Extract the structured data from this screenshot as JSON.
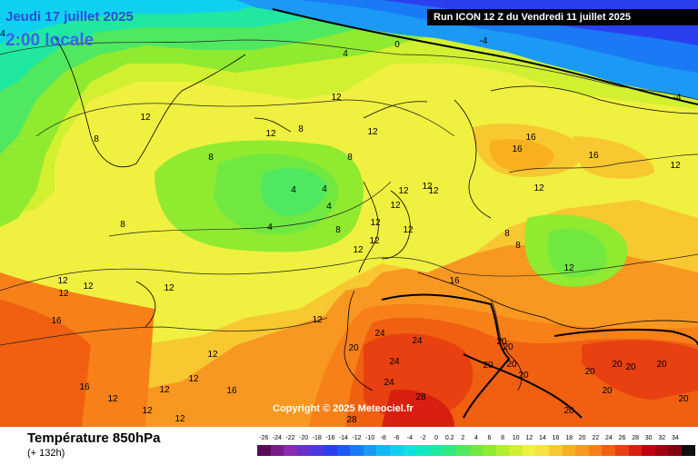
{
  "header": {
    "date": "Jeudi 17 juillet 2025",
    "time": "2:00 locale",
    "run": "Run ICON 12 Z du Vendredi 11 juillet 2025"
  },
  "copyright": "Copyright © 2025 Meteociel.fr",
  "legend": {
    "title": "Température 850hPa",
    "subtitle": "(+ 132h)",
    "ticks": [
      "-26",
      "-24",
      "-22",
      "-20",
      "-18",
      "-16",
      "-14",
      "-12",
      "-10",
      "-8",
      "-6",
      "-4",
      "-2",
      "0",
      "0.2",
      "2",
      "4",
      "6",
      "8",
      "10",
      "12",
      "14",
      "16",
      "18",
      "20",
      "22",
      "24",
      "26",
      "28",
      "30",
      "32",
      "34"
    ],
    "colors": [
      "#5a0a5a",
      "#7a1a8a",
      "#8a2ab0",
      "#6a30c8",
      "#4a3ae0",
      "#2a40f0",
      "#1a5af5",
      "#1a7af5",
      "#1a9af5",
      "#10b8f5",
      "#10d0f0",
      "#10e0e0",
      "#10e8c0",
      "#20e8a0",
      "#30e880",
      "#50e860",
      "#70e840",
      "#90ea30",
      "#b0ee30",
      "#d0f030",
      "#f0f040",
      "#f8e040",
      "#f8c830",
      "#f8b020",
      "#f89820",
      "#f88018",
      "#f06010",
      "#e84010",
      "#d82010",
      "#c00010",
      "#a00010",
      "#800010",
      "#101010"
    ]
  },
  "isotherm_labels": [
    "0",
    "-4",
    "-4",
    "4",
    "4",
    "12",
    "8",
    "12",
    "8",
    "12",
    "12",
    "16",
    "16",
    "16",
    "12",
    "12",
    "8",
    "8",
    "4",
    "4",
    "4",
    "4",
    "8",
    "12",
    "12",
    "12",
    "12",
    "12",
    "12",
    "8",
    "8",
    "8",
    "12",
    "12",
    "12",
    "16",
    "12",
    "12",
    "12",
    "16",
    "12",
    "20",
    "24",
    "24",
    "24",
    "24",
    "28",
    "28",
    "20",
    "20",
    "20",
    "20",
    "20",
    "20",
    "20",
    "20",
    "20",
    "20",
    "20",
    "20",
    "16",
    "16",
    "12",
    "12",
    "12",
    "12",
    "12",
    "12",
    "12"
  ]
}
